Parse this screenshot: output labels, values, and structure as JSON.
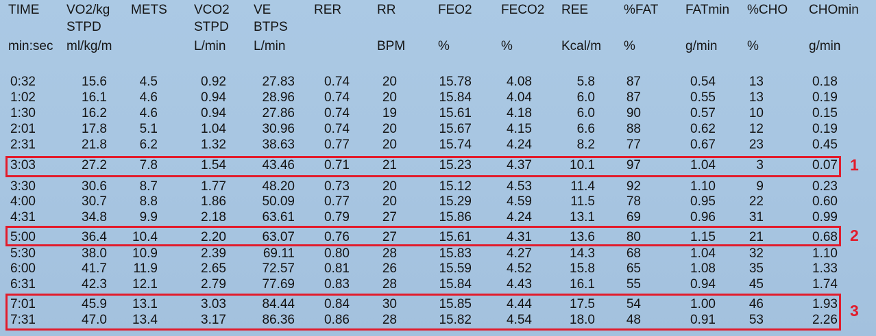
{
  "headers": [
    {
      "line1": "TIME",
      "line2": "",
      "line3": "min:sec"
    },
    {
      "line1": "VO2/kg",
      "line2": "STPD",
      "line3": "ml/kg/m"
    },
    {
      "line1": "METS",
      "line2": "",
      "line3": ""
    },
    {
      "line1": "VCO2",
      "line2": "STPD",
      "line3": "L/min"
    },
    {
      "line1": "VE",
      "line2": "BTPS",
      "line3": "L/min"
    },
    {
      "line1": "RER",
      "line2": "",
      "line3": ""
    },
    {
      "line1": "RR",
      "line2": "",
      "line3": "BPM"
    },
    {
      "line1": "FEO2",
      "line2": "",
      "line3": "%"
    },
    {
      "line1": "FECO2",
      "line2": "",
      "line3": "%"
    },
    {
      "line1": "REE",
      "line2": "",
      "line3": "Kcal/m"
    },
    {
      "line1": "%FAT",
      "line2": "",
      "line3": "%"
    },
    {
      "line1": "FATmin",
      "line2": "",
      "line3": "g/min"
    },
    {
      "line1": "%CHO",
      "line2": "",
      "line3": "%"
    },
    {
      "line1": "CHOmin",
      "line2": "",
      "line3": "g/min"
    }
  ],
  "rows": [
    [
      "0:32",
      "15.6",
      "4.5",
      "0.92",
      "27.83",
      "0.74",
      "20",
      "15.78",
      "4.08",
      "5.8",
      "87",
      "0.54",
      "13",
      "0.18"
    ],
    [
      "1:02",
      "16.1",
      "4.6",
      "0.94",
      "28.96",
      "0.74",
      "20",
      "15.84",
      "4.04",
      "6.0",
      "87",
      "0.55",
      "13",
      "0.19"
    ],
    [
      "1:30",
      "16.2",
      "4.6",
      "0.94",
      "27.86",
      "0.74",
      "19",
      "15.61",
      "4.18",
      "6.0",
      "90",
      "0.57",
      "10",
      "0.15"
    ],
    [
      "2:01",
      "17.8",
      "5.1",
      "1.04",
      "30.96",
      "0.74",
      "20",
      "15.67",
      "4.15",
      "6.6",
      "88",
      "0.62",
      "12",
      "0.19"
    ],
    [
      "2:31",
      "21.8",
      "6.2",
      "1.32",
      "38.63",
      "0.77",
      "20",
      "15.74",
      "4.24",
      "8.2",
      "77",
      "0.67",
      "23",
      "0.45"
    ],
    [
      "3:03",
      "27.2",
      "7.8",
      "1.54",
      "43.46",
      "0.71",
      "21",
      "15.23",
      "4.37",
      "10.1",
      "97",
      "1.04",
      "3",
      "0.07"
    ],
    [
      "3:30",
      "30.6",
      "8.7",
      "1.77",
      "48.20",
      "0.73",
      "20",
      "15.12",
      "4.53",
      "11.4",
      "92",
      "1.10",
      "9",
      "0.23"
    ],
    [
      "4:00",
      "30.7",
      "8.8",
      "1.86",
      "50.09",
      "0.77",
      "20",
      "15.29",
      "4.59",
      "11.5",
      "78",
      "0.95",
      "22",
      "0.60"
    ],
    [
      "4:31",
      "34.8",
      "9.9",
      "2.18",
      "63.61",
      "0.79",
      "27",
      "15.86",
      "4.24",
      "13.1",
      "69",
      "0.96",
      "31",
      "0.99"
    ],
    [
      "5:00",
      "36.4",
      "10.4",
      "2.20",
      "63.07",
      "0.76",
      "27",
      "15.61",
      "4.31",
      "13.6",
      "80",
      "1.15",
      "21",
      "0.68"
    ],
    [
      "5:30",
      "38.0",
      "10.9",
      "2.39",
      "69.11",
      "0.80",
      "28",
      "15.83",
      "4.27",
      "14.3",
      "68",
      "1.04",
      "32",
      "1.10"
    ],
    [
      "6:00",
      "41.7",
      "11.9",
      "2.65",
      "72.57",
      "0.81",
      "26",
      "15.59",
      "4.52",
      "15.8",
      "65",
      "1.08",
      "35",
      "1.33"
    ],
    [
      "6:31",
      "42.3",
      "12.1",
      "2.79",
      "77.69",
      "0.83",
      "28",
      "15.84",
      "4.43",
      "16.1",
      "55",
      "0.94",
      "45",
      "1.74"
    ],
    [
      "7:01",
      "45.9",
      "13.1",
      "3.03",
      "84.44",
      "0.84",
      "30",
      "15.85",
      "4.44",
      "17.5",
      "54",
      "1.00",
      "46",
      "1.93"
    ],
    [
      "7:31",
      "47.0",
      "13.4",
      "3.17",
      "86.36",
      "0.86",
      "28",
      "15.82",
      "4.54",
      "18.0",
      "48",
      "0.91",
      "53",
      "2.26"
    ]
  ],
  "highlight_labels": [
    "1",
    "2",
    "3"
  ],
  "colors": {
    "background": "#a9c7e3",
    "text": "#151515",
    "highlight": "#e21b2b"
  }
}
